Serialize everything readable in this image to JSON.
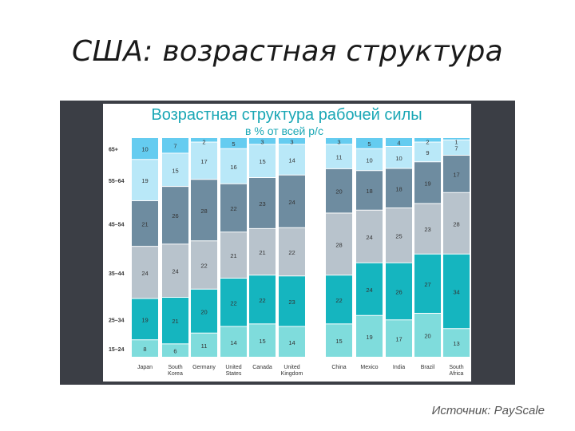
{
  "slide": {
    "title": "США: возрастная структура",
    "source": "Источник: PayScale"
  },
  "colors": {
    "15-24": "#7fdcdc",
    "25-34": "#15b5bf",
    "35-44": "#b8c3cc",
    "45-54": "#6e8ca0",
    "55-64": "#b9e8f8",
    "65+": "#65ccf0",
    "title": "#1aa7b5",
    "subtitle": "#1aa7b5"
  },
  "chart_data": {
    "type": "bar",
    "stacked": true,
    "percent": true,
    "title": "Возрастная структура рабочей силы",
    "subtitle": "в % от всей р/с",
    "categories": [
      "Japan",
      "South Korea",
      "Germany",
      "United States",
      "Canada",
      "United Kingdom",
      "China",
      "Mexico",
      "India",
      "Brazil",
      "South Africa"
    ],
    "category_labels": [
      [
        "Japan"
      ],
      [
        "South",
        "Korea"
      ],
      [
        "Germany"
      ],
      [
        "United",
        "States"
      ],
      [
        "Canada"
      ],
      [
        "United",
        "Kingdom"
      ],
      [
        "China"
      ],
      [
        "Mexico"
      ],
      [
        "India"
      ],
      [
        "Brazil"
      ],
      [
        "South",
        "Africa"
      ]
    ],
    "series": [
      {
        "name": "15–24",
        "values": [
          8,
          6,
          11,
          14,
          15,
          14,
          15,
          19,
          17,
          20,
          13
        ]
      },
      {
        "name": "25–34",
        "values": [
          19,
          21,
          20,
          22,
          22,
          23,
          22,
          24,
          26,
          27,
          34
        ]
      },
      {
        "name": "35–44",
        "values": [
          24,
          24,
          22,
          21,
          21,
          22,
          28,
          24,
          25,
          23,
          28
        ]
      },
      {
        "name": "45–54",
        "values": [
          21,
          26,
          28,
          22,
          23,
          24,
          20,
          18,
          18,
          19,
          17
        ]
      },
      {
        "name": "55–64",
        "values": [
          19,
          15,
          17,
          16,
          15,
          14,
          11,
          10,
          10,
          9,
          7
        ]
      },
      {
        "name": "65+",
        "values": [
          10,
          7,
          2,
          5,
          3,
          3,
          3,
          5,
          4,
          2,
          1
        ]
      }
    ],
    "ylim": [
      0,
      100
    ],
    "legend": "left"
  }
}
